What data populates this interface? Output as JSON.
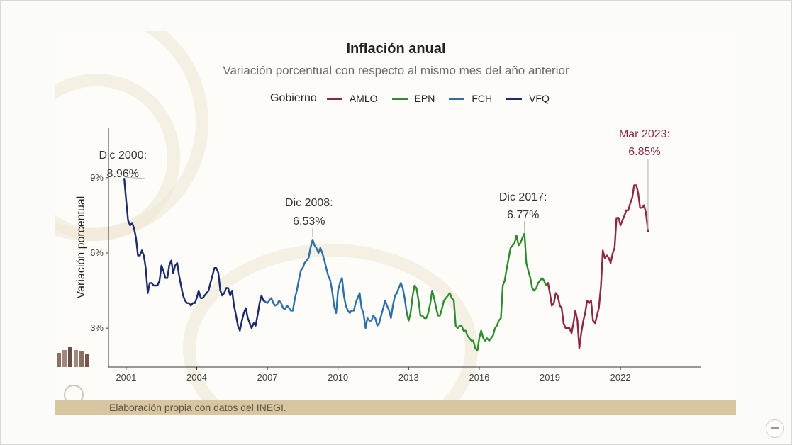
{
  "chart_data": {
    "type": "line",
    "title": "Inflación anual",
    "subtitle": "Variación porcentual con respecto al mismo mes del año anterior",
    "ylabel": "Variación porcentual",
    "xlabel": "",
    "legend": {
      "title": "Gobierno",
      "placement": "top",
      "items": [
        {
          "name": "AMLO",
          "color": "#8c2745"
        },
        {
          "name": "EPN",
          "color": "#2e8b2e"
        },
        {
          "name": "FCH",
          "color": "#2f6fa7"
        },
        {
          "name": "VFQ",
          "color": "#1c2b6b"
        }
      ]
    },
    "xlim": [
      2000.25,
      2025.4
    ],
    "ylim": [
      1.45,
      11.0
    ],
    "x_ticks": [
      2001,
      2004,
      2007,
      2010,
      2013,
      2016,
      2019,
      2022
    ],
    "x_tick_labels": [
      "2001",
      "2004",
      "2007",
      "2010",
      "2013",
      "2016",
      "2019",
      "2022"
    ],
    "y_ticks": [
      3,
      6,
      9
    ],
    "y_tick_labels": [
      "3%",
      "6%",
      "9%"
    ],
    "grid": false,
    "series": [
      {
        "name": "VFQ",
        "color": "#1c2b6b",
        "points": [
          [
            2000.92,
            8.96
          ],
          [
            2001.0,
            8.1
          ],
          [
            2001.08,
            7.3
          ],
          [
            2001.17,
            7.1
          ],
          [
            2001.25,
            7.2
          ],
          [
            2001.33,
            7.0
          ],
          [
            2001.42,
            6.6
          ],
          [
            2001.5,
            5.9
          ],
          [
            2001.58,
            5.9
          ],
          [
            2001.67,
            6.1
          ],
          [
            2001.75,
            5.9
          ],
          [
            2001.83,
            5.4
          ],
          [
            2001.92,
            4.4
          ],
          [
            2002.0,
            4.8
          ],
          [
            2002.08,
            4.8
          ],
          [
            2002.17,
            4.7
          ],
          [
            2002.25,
            4.7
          ],
          [
            2002.33,
            4.7
          ],
          [
            2002.42,
            4.9
          ],
          [
            2002.5,
            5.5
          ],
          [
            2002.58,
            5.3
          ],
          [
            2002.67,
            5.0
          ],
          [
            2002.75,
            5.0
          ],
          [
            2002.83,
            5.5
          ],
          [
            2002.92,
            5.7
          ],
          [
            2003.0,
            5.2
          ],
          [
            2003.08,
            5.5
          ],
          [
            2003.17,
            5.6
          ],
          [
            2003.25,
            5.1
          ],
          [
            2003.33,
            4.7
          ],
          [
            2003.42,
            4.3
          ],
          [
            2003.5,
            4.1
          ],
          [
            2003.58,
            4.0
          ],
          [
            2003.67,
            4.0
          ],
          [
            2003.75,
            3.9
          ],
          [
            2003.83,
            4.0
          ],
          [
            2003.92,
            4.0
          ],
          [
            2004.0,
            4.2
          ],
          [
            2004.08,
            4.5
          ],
          [
            2004.17,
            4.2
          ],
          [
            2004.25,
            4.2
          ],
          [
            2004.33,
            4.3
          ],
          [
            2004.42,
            4.4
          ],
          [
            2004.5,
            4.5
          ],
          [
            2004.58,
            4.8
          ],
          [
            2004.67,
            5.1
          ],
          [
            2004.75,
            5.4
          ],
          [
            2004.83,
            5.4
          ],
          [
            2004.92,
            5.2
          ],
          [
            2005.0,
            4.5
          ],
          [
            2005.08,
            4.3
          ],
          [
            2005.17,
            4.4
          ],
          [
            2005.25,
            4.6
          ],
          [
            2005.33,
            4.6
          ],
          [
            2005.42,
            4.3
          ],
          [
            2005.5,
            4.5
          ],
          [
            2005.58,
            3.9
          ],
          [
            2005.67,
            3.5
          ],
          [
            2005.75,
            3.1
          ],
          [
            2005.83,
            2.9
          ],
          [
            2005.92,
            3.3
          ],
          [
            2006.0,
            3.6
          ],
          [
            2006.08,
            3.8
          ],
          [
            2006.17,
            3.4
          ],
          [
            2006.25,
            3.2
          ],
          [
            2006.33,
            3.0
          ],
          [
            2006.42,
            3.2
          ],
          [
            2006.5,
            3.1
          ],
          [
            2006.58,
            3.5
          ],
          [
            2006.67,
            4.0
          ],
          [
            2006.75,
            4.3
          ],
          [
            2006.83,
            4.1
          ],
          [
            2006.92,
            4.05
          ]
        ]
      },
      {
        "name": "FCH",
        "color": "#2f6fa7",
        "points": [
          [
            2006.92,
            4.05
          ],
          [
            2007.0,
            4.0
          ],
          [
            2007.08,
            4.1
          ],
          [
            2007.17,
            4.2
          ],
          [
            2007.25,
            4.0
          ],
          [
            2007.33,
            3.9
          ],
          [
            2007.42,
            3.95
          ],
          [
            2007.5,
            4.1
          ],
          [
            2007.58,
            4.0
          ],
          [
            2007.67,
            3.8
          ],
          [
            2007.75,
            3.75
          ],
          [
            2007.83,
            3.9
          ],
          [
            2007.92,
            3.8
          ],
          [
            2008.0,
            3.7
          ],
          [
            2008.08,
            3.7
          ],
          [
            2008.17,
            4.2
          ],
          [
            2008.25,
            4.5
          ],
          [
            2008.33,
            4.9
          ],
          [
            2008.42,
            5.3
          ],
          [
            2008.5,
            5.4
          ],
          [
            2008.58,
            5.6
          ],
          [
            2008.67,
            5.7
          ],
          [
            2008.75,
            5.8
          ],
          [
            2008.83,
            6.2
          ],
          [
            2008.92,
            6.53
          ],
          [
            2009.0,
            6.3
          ],
          [
            2009.08,
            6.2
          ],
          [
            2009.17,
            6.0
          ],
          [
            2009.25,
            6.2
          ],
          [
            2009.33,
            6.0
          ],
          [
            2009.42,
            5.7
          ],
          [
            2009.5,
            5.4
          ],
          [
            2009.58,
            5.1
          ],
          [
            2009.67,
            4.9
          ],
          [
            2009.75,
            4.5
          ],
          [
            2009.83,
            3.9
          ],
          [
            2009.92,
            3.6
          ],
          [
            2010.0,
            4.5
          ],
          [
            2010.08,
            4.8
          ],
          [
            2010.17,
            5.0
          ],
          [
            2010.25,
            4.3
          ],
          [
            2010.33,
            3.9
          ],
          [
            2010.42,
            3.7
          ],
          [
            2010.5,
            3.6
          ],
          [
            2010.58,
            3.7
          ],
          [
            2010.67,
            3.7
          ],
          [
            2010.75,
            4.0
          ],
          [
            2010.83,
            4.2
          ],
          [
            2010.92,
            4.4
          ],
          [
            2011.0,
            3.8
          ],
          [
            2011.08,
            3.6
          ],
          [
            2011.17,
            3.0
          ],
          [
            2011.25,
            3.4
          ],
          [
            2011.33,
            3.3
          ],
          [
            2011.42,
            3.3
          ],
          [
            2011.5,
            3.5
          ],
          [
            2011.58,
            3.4
          ],
          [
            2011.67,
            3.1
          ],
          [
            2011.75,
            3.2
          ],
          [
            2011.83,
            3.5
          ],
          [
            2011.92,
            3.8
          ],
          [
            2012.0,
            4.1
          ],
          [
            2012.08,
            3.9
          ],
          [
            2012.17,
            3.7
          ],
          [
            2012.25,
            3.4
          ],
          [
            2012.33,
            3.9
          ],
          [
            2012.42,
            4.3
          ],
          [
            2012.5,
            4.4
          ],
          [
            2012.58,
            4.6
          ],
          [
            2012.67,
            4.8
          ],
          [
            2012.75,
            4.6
          ],
          [
            2012.83,
            4.2
          ],
          [
            2012.92,
            3.6
          ]
        ]
      },
      {
        "name": "EPN",
        "color": "#2e8b2e",
        "points": [
          [
            2012.92,
            3.6
          ],
          [
            2013.0,
            3.3
          ],
          [
            2013.08,
            3.6
          ],
          [
            2013.17,
            4.3
          ],
          [
            2013.25,
            4.7
          ],
          [
            2013.33,
            4.6
          ],
          [
            2013.42,
            4.1
          ],
          [
            2013.5,
            3.5
          ],
          [
            2013.58,
            3.5
          ],
          [
            2013.67,
            3.4
          ],
          [
            2013.75,
            3.4
          ],
          [
            2013.83,
            3.6
          ],
          [
            2013.92,
            4.0
          ],
          [
            2014.0,
            4.5
          ],
          [
            2014.08,
            4.2
          ],
          [
            2014.17,
            3.8
          ],
          [
            2014.25,
            3.5
          ],
          [
            2014.33,
            3.5
          ],
          [
            2014.42,
            3.8
          ],
          [
            2014.5,
            4.1
          ],
          [
            2014.58,
            4.2
          ],
          [
            2014.67,
            4.3
          ],
          [
            2014.75,
            4.4
          ],
          [
            2014.83,
            4.2
          ],
          [
            2014.92,
            4.1
          ],
          [
            2015.0,
            3.1
          ],
          [
            2015.08,
            3.0
          ],
          [
            2015.17,
            3.1
          ],
          [
            2015.25,
            3.1
          ],
          [
            2015.33,
            2.9
          ],
          [
            2015.42,
            2.9
          ],
          [
            2015.5,
            2.7
          ],
          [
            2015.58,
            2.6
          ],
          [
            2015.67,
            2.5
          ],
          [
            2015.75,
            2.5
          ],
          [
            2015.83,
            2.2
          ],
          [
            2015.92,
            2.1
          ],
          [
            2016.0,
            2.6
          ],
          [
            2016.08,
            2.9
          ],
          [
            2016.17,
            2.6
          ],
          [
            2016.25,
            2.5
          ],
          [
            2016.33,
            2.6
          ],
          [
            2016.42,
            2.5
          ],
          [
            2016.5,
            2.6
          ],
          [
            2016.58,
            2.7
          ],
          [
            2016.67,
            3.0
          ],
          [
            2016.75,
            3.1
          ],
          [
            2016.83,
            3.3
          ],
          [
            2016.92,
            3.4
          ],
          [
            2017.0,
            4.7
          ],
          [
            2017.08,
            4.9
          ],
          [
            2017.17,
            5.4
          ],
          [
            2017.25,
            5.8
          ],
          [
            2017.33,
            6.2
          ],
          [
            2017.42,
            6.3
          ],
          [
            2017.5,
            6.4
          ],
          [
            2017.58,
            6.7
          ],
          [
            2017.67,
            6.3
          ],
          [
            2017.75,
            6.4
          ],
          [
            2017.83,
            6.6
          ],
          [
            2017.92,
            6.77
          ],
          [
            2018.0,
            5.6
          ],
          [
            2018.08,
            5.3
          ],
          [
            2018.17,
            5.0
          ],
          [
            2018.25,
            4.6
          ],
          [
            2018.33,
            4.5
          ],
          [
            2018.42,
            4.6
          ],
          [
            2018.5,
            4.8
          ],
          [
            2018.58,
            4.9
          ],
          [
            2018.67,
            5.0
          ],
          [
            2018.75,
            4.9
          ],
          [
            2018.83,
            4.7
          ],
          [
            2018.92,
            4.8
          ]
        ]
      },
      {
        "name": "AMLO",
        "color": "#8c2745",
        "points": [
          [
            2018.92,
            4.8
          ],
          [
            2019.0,
            4.4
          ],
          [
            2019.08,
            3.9
          ],
          [
            2019.17,
            4.0
          ],
          [
            2019.25,
            4.4
          ],
          [
            2019.33,
            4.3
          ],
          [
            2019.42,
            3.9
          ],
          [
            2019.5,
            3.8
          ],
          [
            2019.58,
            3.2
          ],
          [
            2019.67,
            3.0
          ],
          [
            2019.75,
            3.0
          ],
          [
            2019.83,
            3.0
          ],
          [
            2019.92,
            2.8
          ],
          [
            2020.0,
            3.2
          ],
          [
            2020.08,
            3.7
          ],
          [
            2020.17,
            3.3
          ],
          [
            2020.25,
            2.2
          ],
          [
            2020.33,
            2.8
          ],
          [
            2020.42,
            3.3
          ],
          [
            2020.5,
            3.6
          ],
          [
            2020.58,
            4.1
          ],
          [
            2020.67,
            4.0
          ],
          [
            2020.75,
            4.1
          ],
          [
            2020.83,
            3.3
          ],
          [
            2020.92,
            3.2
          ],
          [
            2021.0,
            3.5
          ],
          [
            2021.08,
            3.8
          ],
          [
            2021.17,
            4.7
          ],
          [
            2021.25,
            6.1
          ],
          [
            2021.33,
            5.8
          ],
          [
            2021.42,
            5.9
          ],
          [
            2021.5,
            5.8
          ],
          [
            2021.58,
            5.6
          ],
          [
            2021.67,
            6.0
          ],
          [
            2021.75,
            6.2
          ],
          [
            2021.83,
            7.4
          ],
          [
            2021.92,
            7.4
          ],
          [
            2022.0,
            7.1
          ],
          [
            2022.08,
            7.3
          ],
          [
            2022.17,
            7.5
          ],
          [
            2022.25,
            7.7
          ],
          [
            2022.33,
            7.7
          ],
          [
            2022.42,
            8.0
          ],
          [
            2022.5,
            8.2
          ],
          [
            2022.58,
            8.7
          ],
          [
            2022.67,
            8.7
          ],
          [
            2022.75,
            8.4
          ],
          [
            2022.83,
            7.8
          ],
          [
            2022.92,
            7.8
          ],
          [
            2023.0,
            7.9
          ],
          [
            2023.08,
            7.6
          ],
          [
            2023.17,
            6.85
          ]
        ]
      }
    ],
    "annotations": [
      {
        "line1": "Dic 2000:",
        "line2": "8.96%",
        "x": 2000.92,
        "y": 8.96,
        "color": "#333333"
      },
      {
        "line1": "Dic 2008:",
        "line2": "6.53%",
        "x": 2008.92,
        "y": 6.53,
        "color": "#333333"
      },
      {
        "line1": "Dic 2017:",
        "line2": "6.77%",
        "x": 2017.92,
        "y": 6.77,
        "color": "#333333"
      },
      {
        "line1": "Mar 2023:",
        "line2": "6.85%",
        "x": 2023.17,
        "y": 6.85,
        "color": "#8c2745"
      }
    ]
  },
  "footer": {
    "source": "Elaboración propia con datos del INEGI."
  }
}
